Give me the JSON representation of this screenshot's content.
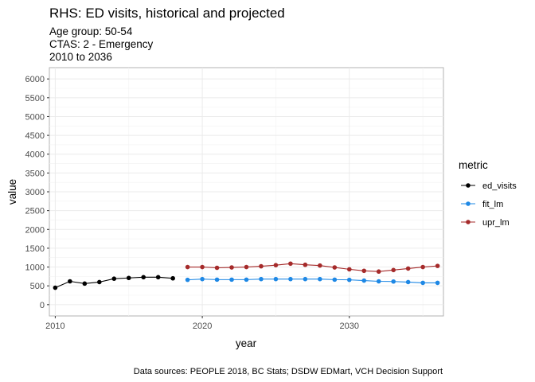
{
  "chart_data": {
    "type": "line",
    "title": "RHS: ED visits, historical and projected",
    "subtitle_lines": [
      "Age group: 50-54",
      "CTAS: 2 - Emergency",
      "2010 to 2036"
    ],
    "xlabel": "year",
    "ylabel": "value",
    "caption": "Data sources: PEOPLE 2018, BC Stats; DSDW EDMart, VCH Decision Support",
    "xlim": [
      2009.6,
      2036.4
    ],
    "ylim": [
      -300,
      6300
    ],
    "x_ticks": [
      2010,
      2020,
      2030
    ],
    "x_tick_labels": [
      "2010",
      "2020",
      "2030"
    ],
    "y_ticks": [
      0,
      500,
      1000,
      1500,
      2000,
      2500,
      3000,
      3500,
      4000,
      4500,
      5000,
      5500,
      6000
    ],
    "y_tick_labels": [
      "0",
      "500",
      "1000",
      "1500",
      "2000",
      "2500",
      "3000",
      "3500",
      "4000",
      "4500",
      "5000",
      "5500",
      "6000"
    ],
    "grid": true,
    "legend": {
      "title": "metric",
      "position": "right"
    },
    "series": [
      {
        "name": "ed_visits",
        "color": "#000000",
        "x": [
          2010,
          2011,
          2012,
          2013,
          2014,
          2015,
          2016,
          2017,
          2018
        ],
        "y": [
          450,
          620,
          560,
          600,
          690,
          710,
          730,
          730,
          700
        ]
      },
      {
        "name": "fit_lm",
        "color": "#1e88e5",
        "x": [
          2019,
          2020,
          2021,
          2022,
          2023,
          2024,
          2025,
          2026,
          2027,
          2028,
          2029,
          2030,
          2031,
          2032,
          2033,
          2034,
          2035,
          2036
        ],
        "y": [
          660,
          680,
          665,
          665,
          665,
          680,
          680,
          680,
          680,
          680,
          665,
          660,
          640,
          620,
          615,
          600,
          580,
          580
        ]
      },
      {
        "name": "upr_lm",
        "color": "#a52a2a",
        "x": [
          2019,
          2020,
          2021,
          2022,
          2023,
          2024,
          2025,
          2026,
          2027,
          2028,
          2029,
          2030,
          2031,
          2032,
          2033,
          2034,
          2035,
          2036
        ],
        "y": [
          1000,
          1000,
          980,
          990,
          1000,
          1020,
          1050,
          1090,
          1060,
          1040,
          990,
          940,
          900,
          880,
          920,
          960,
          1000,
          1030
        ]
      }
    ]
  }
}
